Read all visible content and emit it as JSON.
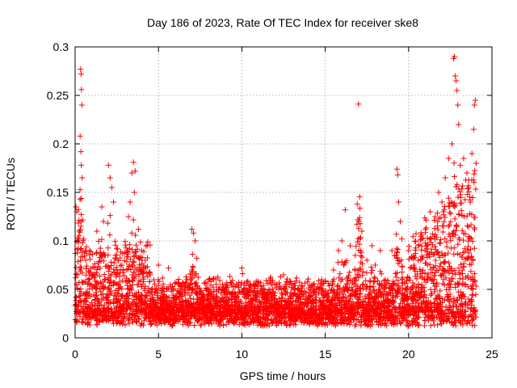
{
  "chart_data": {
    "type": "scatter",
    "title": "Day 186 of 2023, Rate Of TEC Index for receiver ske8",
    "xlabel": "GPS time / hours",
    "ylabel": "ROTI / TECUs",
    "xlim": [
      0,
      25
    ],
    "ylim": [
      0,
      0.3
    ],
    "x_ticks": [
      0,
      5,
      10,
      15,
      20,
      25
    ],
    "x_tick_labels": [
      "0",
      "5",
      "10",
      "15",
      "20",
      "25"
    ],
    "y_ticks": [
      0,
      0.05,
      0.1,
      0.15,
      0.2,
      0.25,
      0.3
    ],
    "y_tick_labels": [
      "0",
      "0.05",
      "0.1",
      "0.15",
      "0.2",
      "0.25",
      "0.3"
    ],
    "grid": true,
    "marker": "+",
    "color": "#ff0000",
    "series": [
      {
        "name": "ROTI",
        "points": [
          [
            0.05,
            0.135
          ],
          [
            0.1,
            0.13
          ],
          [
            0.2,
            0.092
          ],
          [
            0.3,
            0.208
          ],
          [
            0.33,
            0.277
          ],
          [
            0.36,
            0.272
          ],
          [
            0.38,
            0.256
          ],
          [
            0.4,
            0.24
          ],
          [
            0.35,
            0.192
          ],
          [
            0.37,
            0.178
          ],
          [
            0.42,
            0.165
          ],
          [
            0.3,
            0.073
          ],
          [
            0.6,
            0.09
          ],
          [
            0.9,
            0.081
          ],
          [
            1.3,
            0.11
          ],
          [
            1.5,
            0.088
          ],
          [
            1.6,
            0.135
          ],
          [
            1.7,
            0.12
          ],
          [
            2.0,
            0.178
          ],
          [
            2.1,
            0.165
          ],
          [
            2.2,
            0.155
          ],
          [
            2.3,
            0.14
          ],
          [
            2.5,
            0.092
          ],
          [
            2.8,
            0.075
          ],
          [
            3.4,
            0.17
          ],
          [
            3.5,
            0.181
          ],
          [
            3.6,
            0.172
          ],
          [
            3.3,
            0.14
          ],
          [
            3.55,
            0.15
          ],
          [
            3.2,
            0.125
          ],
          [
            3.8,
            0.112
          ],
          [
            4.0,
            0.09
          ],
          [
            4.2,
            0.08
          ],
          [
            4.5,
            0.065
          ],
          [
            5.0,
            0.075
          ],
          [
            5.6,
            0.072
          ],
          [
            6.5,
            0.056
          ],
          [
            7.0,
            0.112
          ],
          [
            7.1,
            0.108
          ],
          [
            7.2,
            0.1
          ],
          [
            7.3,
            0.082
          ],
          [
            7.0,
            0.07
          ],
          [
            8.0,
            0.06
          ],
          [
            8.5,
            0.05
          ],
          [
            9.0,
            0.048
          ],
          [
            9.8,
            0.052
          ],
          [
            10.0,
            0.072
          ],
          [
            10.5,
            0.055
          ],
          [
            11.0,
            0.058
          ],
          [
            11.5,
            0.045
          ],
          [
            12.0,
            0.04
          ],
          [
            12.5,
            0.065
          ],
          [
            13.0,
            0.045
          ],
          [
            13.5,
            0.048
          ],
          [
            14.0,
            0.04
          ],
          [
            14.5,
            0.05
          ],
          [
            15.0,
            0.058
          ],
          [
            15.5,
            0.07
          ],
          [
            15.8,
            0.09
          ],
          [
            16.0,
            0.1
          ],
          [
            16.2,
            0.132
          ],
          [
            16.5,
            0.095
          ],
          [
            16.8,
            0.085
          ],
          [
            17.0,
            0.241
          ],
          [
            17.2,
            0.11
          ],
          [
            17.5,
            0.08
          ],
          [
            17.8,
            0.095
          ],
          [
            18.0,
            0.075
          ],
          [
            18.3,
            0.09
          ],
          [
            18.6,
            0.06
          ],
          [
            19.0,
            0.09
          ],
          [
            19.3,
            0.174
          ],
          [
            19.35,
            0.168
          ],
          [
            19.4,
            0.14
          ],
          [
            19.5,
            0.12
          ],
          [
            19.6,
            0.102
          ],
          [
            20.0,
            0.09
          ],
          [
            20.3,
            0.083
          ],
          [
            20.6,
            0.095
          ],
          [
            21.0,
            0.112
          ],
          [
            21.3,
            0.13
          ],
          [
            21.6,
            0.125
          ],
          [
            21.8,
            0.15
          ],
          [
            22.0,
            0.14
          ],
          [
            22.2,
            0.165
          ],
          [
            22.4,
            0.185
          ],
          [
            22.6,
            0.2
          ],
          [
            22.7,
            0.288
          ],
          [
            22.75,
            0.29
          ],
          [
            22.8,
            0.27
          ],
          [
            22.85,
            0.265
          ],
          [
            22.9,
            0.255
          ],
          [
            22.95,
            0.24
          ],
          [
            23.0,
            0.22
          ],
          [
            23.1,
            0.178
          ],
          [
            23.3,
            0.185
          ],
          [
            23.5,
            0.17
          ],
          [
            23.6,
            0.155
          ],
          [
            23.7,
            0.14
          ],
          [
            23.8,
            0.19
          ],
          [
            23.9,
            0.215
          ],
          [
            23.95,
            0.24
          ],
          [
            24.0,
            0.245
          ],
          [
            24.05,
            0.18
          ]
        ]
      }
    ]
  }
}
